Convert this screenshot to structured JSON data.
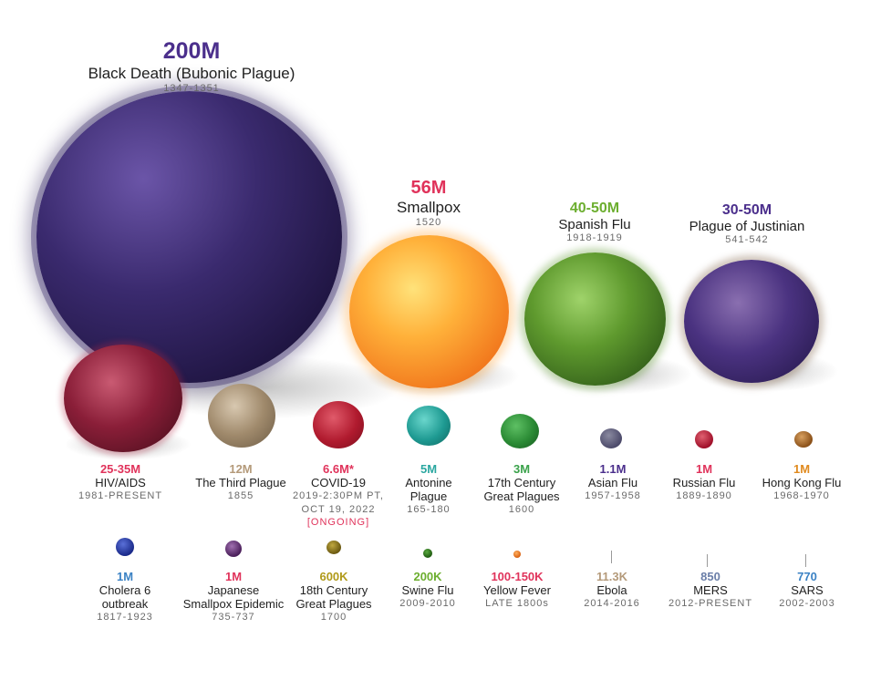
{
  "items": [
    {
      "id": "black-death",
      "value": "200M",
      "name": "Black Death (Bubonic Plague)",
      "years": "1347-1351",
      "color": "#4b2f8c"
    },
    {
      "id": "smallpox",
      "value": "56M",
      "name": "Smallpox",
      "years": "1520",
      "color": "#e0335b"
    },
    {
      "id": "spanish-flu",
      "value": "40-50M",
      "name": "Spanish Flu",
      "years": "1918-1919",
      "color": "#6cae2f"
    },
    {
      "id": "justinian",
      "value": "30-50M",
      "name": "Plague of Justinian",
      "years": "541-542",
      "color": "#4b2f8c"
    },
    {
      "id": "hiv",
      "value": "25-35M",
      "name": "HIV/AIDS",
      "years": "1981-PRESENT",
      "color": "#e0335b"
    },
    {
      "id": "third-plague",
      "value": "12M",
      "name": "The Third Plague",
      "years": "1855",
      "color": "#b49a7a"
    },
    {
      "id": "covid",
      "value": "6.6M*",
      "name": "COVID-19",
      "years1": "2019-2:30PM PT,",
      "years2": "OCT 19, 2022",
      "ongoing": "[ONGOING]",
      "color": "#e0335b"
    },
    {
      "id": "antonine",
      "value": "5M",
      "name1": "Antonine",
      "name2": "Plague",
      "years": "165-180",
      "color": "#2aa7a0"
    },
    {
      "id": "17th",
      "value": "3M",
      "name1": "17th Century",
      "name2": "Great Plagues",
      "years": "1600",
      "color": "#3aa24a"
    },
    {
      "id": "asian-flu",
      "value": "1.1M",
      "name": "Asian Flu",
      "years": "1957-1958",
      "color": "#4b2f8c"
    },
    {
      "id": "russian-flu",
      "value": "1M",
      "name": "Russian Flu",
      "years": "1889-1890",
      "color": "#e0335b"
    },
    {
      "id": "hong-kong",
      "value": "1M",
      "name": "Hong Kong Flu",
      "years": "1968-1970",
      "color": "#e08a1e"
    },
    {
      "id": "cholera",
      "value": "1M",
      "name1": "Cholera 6",
      "name2": "outbreak",
      "years": "1817-1923",
      "color": "#3b82c4"
    },
    {
      "id": "jp-smallpox",
      "value": "1M",
      "name1": "Japanese",
      "name2": "Smallpox Epidemic",
      "years": "735-737",
      "color": "#e0335b"
    },
    {
      "id": "18th",
      "value": "600K",
      "name1": "18th Century",
      "name2": "Great Plagues",
      "years": "1700",
      "color": "#b09a1a"
    },
    {
      "id": "swine",
      "value": "200K",
      "name": "Swine Flu",
      "years": "2009-2010",
      "color": "#6cae2f"
    },
    {
      "id": "yellow",
      "value": "100-150K",
      "name": "Yellow Fever",
      "years": "LATE 1800s",
      "color": "#e0335b"
    },
    {
      "id": "ebola",
      "value": "11.3K",
      "name": "Ebola",
      "years": "2014-2016",
      "color": "#b49a7a"
    },
    {
      "id": "mers",
      "value": "850",
      "name": "MERS",
      "years": "2012-PRESENT",
      "color": "#6a7ea8"
    },
    {
      "id": "sars",
      "value": "770",
      "name": "SARS",
      "years": "2002-2003",
      "color": "#3b82c4"
    }
  ]
}
